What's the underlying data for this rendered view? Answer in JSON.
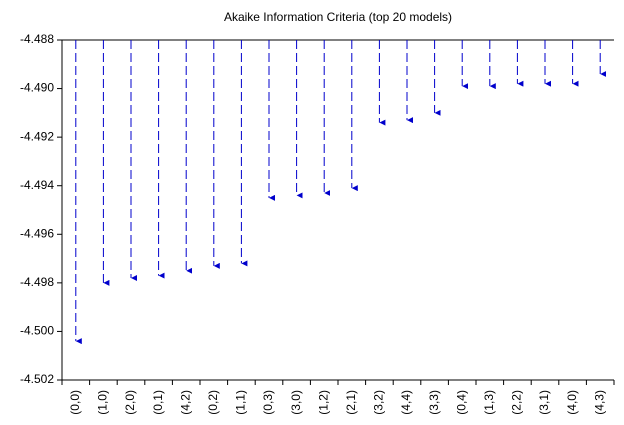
{
  "chart_data": {
    "type": "dropline",
    "title": "Akaike Information Criteria (top 20 models)",
    "categories": [
      "(0,0)",
      "(1,0)",
      "(2,0)",
      "(0,1)",
      "(4,2)",
      "(0,2)",
      "(1,1)",
      "(0,3)",
      "(3,0)",
      "(1,2)",
      "(2,1)",
      "(3,2)",
      "(4,4)",
      "(3,3)",
      "(0,4)",
      "(1,3)",
      "(2,2)",
      "(3,1)",
      "(4,0)",
      "(4,3)"
    ],
    "values": [
      -4.5004,
      -4.498,
      -4.4978,
      -4.4977,
      -4.4975,
      -4.4973,
      -4.4972,
      -4.4945,
      -4.4944,
      -4.4943,
      -4.4941,
      -4.4914,
      -4.4913,
      -4.491,
      -4.4899,
      -4.4899,
      -4.4898,
      -4.4898,
      -4.4898,
      -4.4894
    ],
    "color": "#0000cc",
    "ylim": [
      -4.502,
      -4.488
    ],
    "yticks": [
      -4.488,
      {
        "value": -4.49,
        "label": "-4.490"
      },
      -4.492,
      -4.494,
      -4.496,
      -4.498,
      {
        "value": -4.5,
        "label": "-4.500"
      },
      -4.502
    ]
  }
}
